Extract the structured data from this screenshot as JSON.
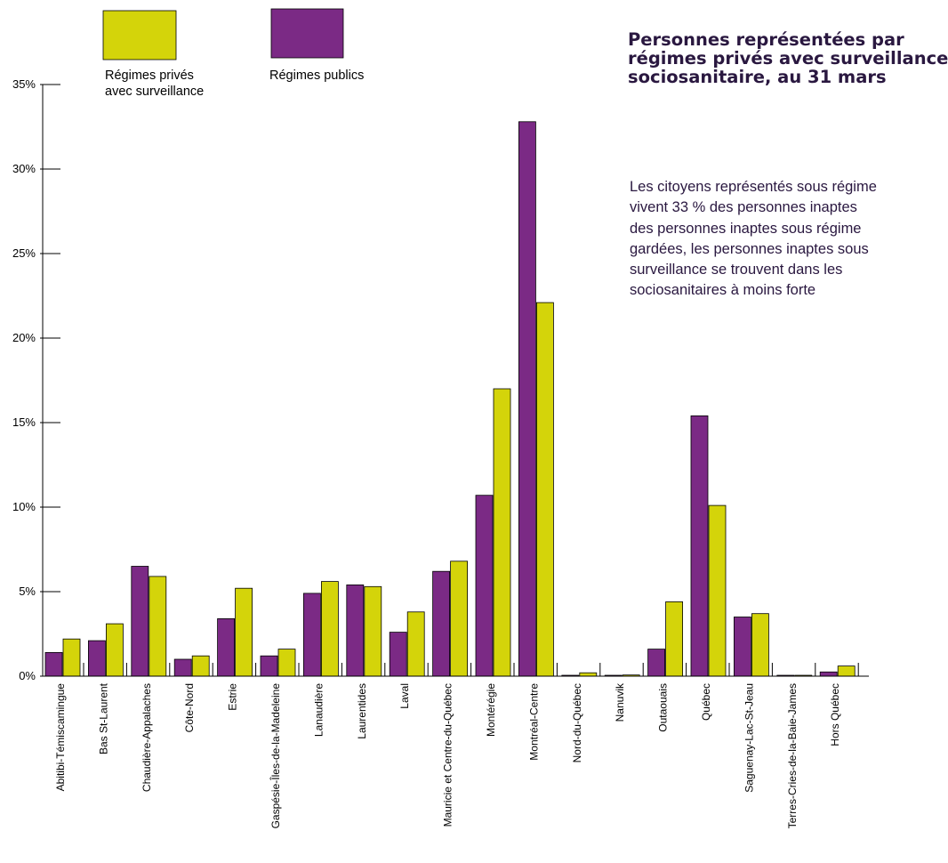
{
  "title": {
    "lines": [
      "Personnes représentées par",
      "régimes privés avec surveillance",
      "sociosanitaire, au 31 mars"
    ]
  },
  "body": {
    "lines": [
      "Les citoyens représentés sous régime",
      "vivent 33 % des personnes inaptes",
      "des personnes inaptes sous régime",
      "gardées, les personnes inaptes sous",
      "surveillance se trouvent dans les",
      "sociosanitaires à moins forte"
    ]
  },
  "colors": {
    "prive": "#d4d40a",
    "public": "#7b2a85",
    "axis": "#000000"
  },
  "chart_data": {
    "type": "bar",
    "title": "",
    "xlabel": "",
    "ylabel": "",
    "ylim": [
      0,
      35
    ],
    "yticks": [
      "0%",
      "5%",
      "10%",
      "15%",
      "20%",
      "25%",
      "30%",
      "35%"
    ],
    "legend_placement": "top-left",
    "categories": [
      "Abitibi-Témiscamingue",
      "Bas St-Laurent",
      "Chaudière-Appalaches",
      "Côte-Nord",
      "Estrie",
      "Gaspésie-Îles-de-la-Madeleine",
      "Lanaudière",
      "Laurentides",
      "Laval",
      "Mauricie et Centre-du-Québec",
      "Montérégie",
      "Montréal-Centre",
      "Nord-du-Québec",
      "Nanuvik",
      "Outaouais",
      "Québec",
      "Saguenay-Lac-St-Jeau",
      "Terres-Cries-de-la-Baie-James",
      "Hors Québec"
    ],
    "series": [
      {
        "name": "Régimes publics",
        "legend_lines": [
          "Régimes publics"
        ],
        "color": "#7b2a85",
        "values": [
          1.4,
          2.1,
          6.5,
          1.0,
          3.4,
          1.2,
          4.9,
          5.4,
          2.6,
          6.2,
          10.7,
          32.8,
          0.05,
          0.05,
          1.6,
          15.4,
          3.5,
          0.03,
          0.25
        ]
      },
      {
        "name": "Régimes privés avec surveillance",
        "legend_lines": [
          "Régimes privés",
          "avec surveillance"
        ],
        "color": "#d4d40a",
        "values": [
          2.2,
          3.1,
          5.9,
          1.2,
          5.2,
          1.6,
          5.6,
          5.3,
          3.8,
          6.8,
          17.0,
          22.1,
          0.2,
          0.07,
          4.4,
          10.1,
          3.7,
          0.05,
          0.6
        ]
      }
    ]
  }
}
